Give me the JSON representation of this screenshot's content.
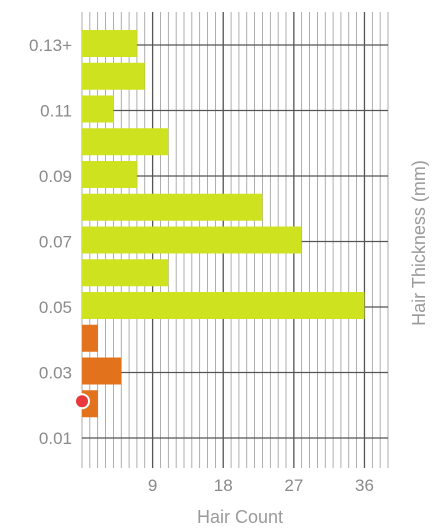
{
  "chart_data": {
    "type": "bar",
    "orientation": "horizontal",
    "title": "",
    "xlabel": "Hair Count",
    "ylabel": "Hair Thickness (mm)",
    "xlim": [
      0,
      39
    ],
    "x_ticks": [
      "9",
      "18",
      "27",
      "36"
    ],
    "y_ticks": [
      "0.13+",
      "0.11",
      "0.09",
      "0.07",
      "0.05",
      "0.03",
      "0.01"
    ],
    "grid": true,
    "colors": {
      "above_threshold": "#cfe21f",
      "below_threshold": "#e2731c",
      "marker": "#e8383b"
    },
    "threshold_marker_between": [
      "0.03",
      "0.05"
    ],
    "bars": [
      {
        "value": 7,
        "group": "above"
      },
      {
        "value": 8,
        "group": "above"
      },
      {
        "value": 4,
        "group": "above"
      },
      {
        "value": 11,
        "group": "above"
      },
      {
        "value": 7,
        "group": "above"
      },
      {
        "value": 23,
        "group": "above"
      },
      {
        "value": 28,
        "group": "above"
      },
      {
        "value": 11,
        "group": "above"
      },
      {
        "value": 36,
        "group": "above"
      },
      {
        "value": 2,
        "group": "below"
      },
      {
        "value": 5,
        "group": "below"
      },
      {
        "value": 2,
        "group": "below"
      }
    ]
  }
}
